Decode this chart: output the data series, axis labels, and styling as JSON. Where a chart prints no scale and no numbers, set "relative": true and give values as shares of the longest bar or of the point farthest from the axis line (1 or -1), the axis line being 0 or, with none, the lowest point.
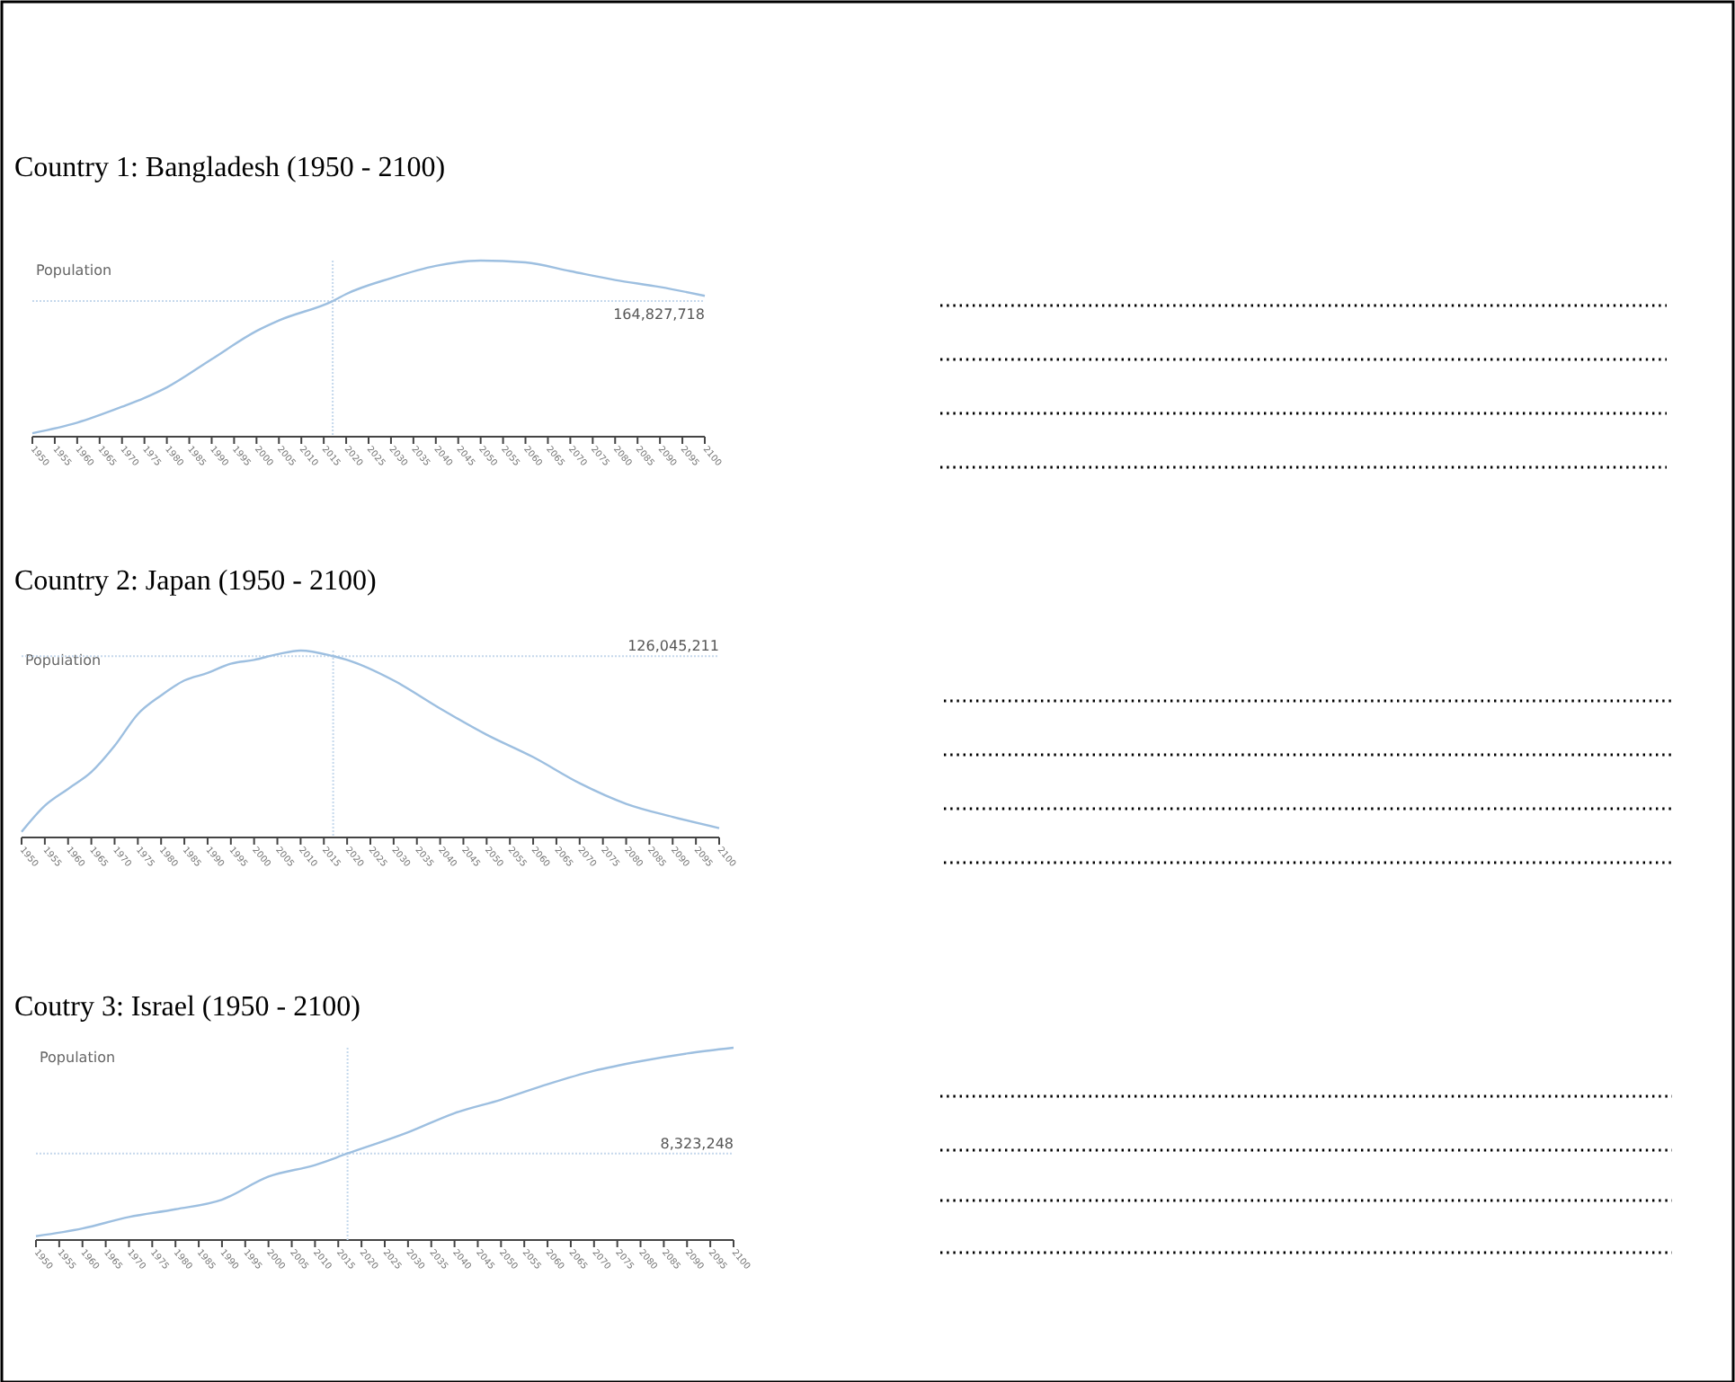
{
  "chart_data": [
    {
      "type": "line",
      "title": "Country 1: Bangladesh (1950 - 2100)",
      "ylabel": "Population",
      "relative": true,
      "xlim": [
        1950,
        2100
      ],
      "xticks": [
        1950,
        1955,
        1960,
        1965,
        1970,
        1975,
        1980,
        1985,
        1990,
        1995,
        2000,
        2005,
        2010,
        2015,
        2020,
        2025,
        2030,
        2035,
        2040,
        2045,
        2050,
        2055,
        2060,
        2065,
        2070,
        2075,
        2080,
        2085,
        2090,
        2095,
        2100
      ],
      "series": [
        {
          "color": "#9dbfe0",
          "x": [
            1950,
            1960,
            1970,
            1975,
            1980,
            1990,
            2000,
            2005,
            2017,
            2020,
            2030,
            2040,
            2050,
            2060,
            2070,
            2080,
            2090,
            2100
          ],
          "values": [
            0.02,
            0.08,
            0.17,
            0.22,
            0.28,
            0.44,
            0.6,
            0.66,
            0.77,
            0.81,
            0.9,
            0.97,
            1,
            0.99,
            0.94,
            0.89,
            0.85,
            0.8
          ]
        }
      ],
      "ref_lines": [
        {
          "axis": "x",
          "value": 2017
        },
        {
          "axis": "y",
          "value": 0.77
        }
      ],
      "annotations": [
        {
          "text": "164,827,718",
          "y": 0.77
        }
      ]
    },
    {
      "type": "line",
      "title": "Country 2: Japan (1950 - 2100)",
      "ylabel": "Population",
      "relative": true,
      "xlim": [
        1950,
        2100
      ],
      "xticks": [
        1950,
        1955,
        1960,
        1965,
        1970,
        1975,
        1980,
        1985,
        1990,
        1995,
        2000,
        2005,
        2010,
        2015,
        2020,
        2025,
        2030,
        2035,
        2040,
        2045,
        2050,
        2055,
        2060,
        2065,
        2070,
        2075,
        2080,
        2085,
        2090,
        2095,
        2100
      ],
      "series": [
        {
          "color": "#9dbfe0",
          "x": [
            1950,
            1955,
            1960,
            1965,
            1970,
            1975,
            1980,
            1985,
            1990,
            1995,
            2000,
            2005,
            2010,
            2017,
            2020,
            2030,
            2040,
            2050,
            2060,
            2070,
            2080,
            2090,
            2100
          ],
          "values": [
            0.03,
            0.17,
            0.26,
            0.35,
            0.49,
            0.66,
            0.76,
            0.84,
            0.88,
            0.93,
            0.95,
            0.98,
            1,
            0.97,
            0.95,
            0.84,
            0.69,
            0.55,
            0.43,
            0.29,
            0.18,
            0.11,
            0.05
          ]
        }
      ],
      "ref_lines": [
        {
          "axis": "x",
          "value": 2017
        },
        {
          "axis": "y",
          "value": 0.97
        }
      ],
      "annotations": [
        {
          "text": "126,045,211",
          "y": 0.97
        }
      ]
    },
    {
      "type": "line",
      "title": "Coutry 3: Israel (1950 - 2100)",
      "ylabel": "Population",
      "relative": true,
      "xlim": [
        1950,
        2100
      ],
      "xticks": [
        1950,
        1955,
        1960,
        1965,
        1970,
        1975,
        1980,
        1985,
        1990,
        1995,
        2000,
        2005,
        2010,
        2015,
        2020,
        2025,
        2030,
        2035,
        2040,
        2045,
        2050,
        2055,
        2060,
        2065,
        2070,
        2075,
        2080,
        2085,
        2090,
        2095,
        2100
      ],
      "series": [
        {
          "color": "#9dbfe0",
          "x": [
            1950,
            1960,
            1970,
            1980,
            1990,
            2000,
            2010,
            2017,
            2030,
            2040,
            2050,
            2060,
            2070,
            2080,
            2090,
            2100
          ],
          "values": [
            0.02,
            0.06,
            0.12,
            0.16,
            0.21,
            0.33,
            0.39,
            0.45,
            0.56,
            0.66,
            0.73,
            0.81,
            0.88,
            0.93,
            0.97,
            1
          ]
        }
      ],
      "ref_lines": [
        {
          "axis": "x",
          "value": 2017
        },
        {
          "axis": "y",
          "value": 0.45
        }
      ],
      "annotations": [
        {
          "text": "8,323,248",
          "y": 0.45
        }
      ]
    }
  ]
}
